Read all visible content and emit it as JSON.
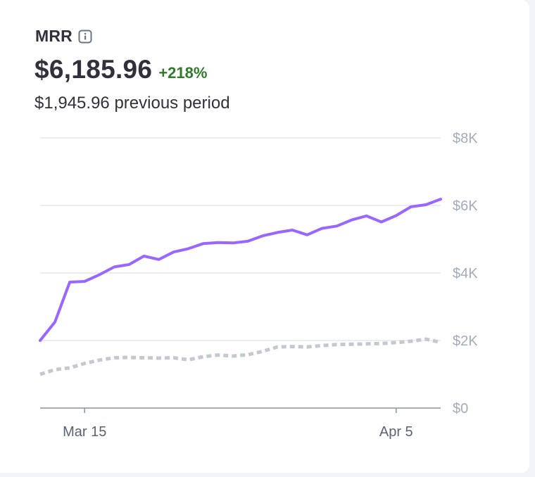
{
  "card": {
    "metric_name": "MRR",
    "value": "$6,185.96",
    "change": "+218%",
    "previous_value": "$1,945.96",
    "previous_suffix": "previous period",
    "info_icon": "info-icon"
  },
  "colors": {
    "current": "#9966ff",
    "previous": "#c4c8d0",
    "grid": "#e3e8ee",
    "axis": "#8792a2",
    "change_positive": "#2f7a2b"
  },
  "chart_data": {
    "type": "line",
    "title": "",
    "xlabel": "",
    "ylabel": "",
    "ylim": [
      0,
      8000
    ],
    "yticks": [
      {
        "value": 0,
        "label": "$0"
      },
      {
        "value": 2000,
        "label": "$2K"
      },
      {
        "value": 4000,
        "label": "$4K"
      },
      {
        "value": 6000,
        "label": "$6K"
      },
      {
        "value": 8000,
        "label": "$8K"
      }
    ],
    "x": [
      "2024-03-12",
      "2024-03-13",
      "2024-03-14",
      "2024-03-15",
      "2024-03-16",
      "2024-03-17",
      "2024-03-18",
      "2024-03-19",
      "2024-03-20",
      "2024-03-21",
      "2024-03-22",
      "2024-03-23",
      "2024-03-24",
      "2024-03-25",
      "2024-03-26",
      "2024-03-27",
      "2024-03-28",
      "2024-03-29",
      "2024-03-30",
      "2024-03-31",
      "2024-04-01",
      "2024-04-02",
      "2024-04-03",
      "2024-04-04",
      "2024-04-05",
      "2024-04-06",
      "2024-04-07",
      "2024-04-08"
    ],
    "xticks": [
      {
        "value": "2024-03-15",
        "label": "Mar 15"
      },
      {
        "value": "2024-04-05",
        "label": "Apr 5"
      }
    ],
    "grid": true,
    "series": [
      {
        "name": "",
        "style": "solid",
        "values": [
          2000,
          2550,
          3730,
          3750,
          3950,
          4180,
          4250,
          4500,
          4400,
          4620,
          4720,
          4870,
          4900,
          4890,
          4940,
          5100,
          5200,
          5270,
          5130,
          5320,
          5390,
          5570,
          5690,
          5510,
          5700,
          5960,
          6020,
          6185
        ]
      },
      {
        "name": "",
        "style": "dotted",
        "values": [
          1000,
          1140,
          1190,
          1320,
          1420,
          1490,
          1500,
          1490,
          1480,
          1490,
          1430,
          1520,
          1570,
          1540,
          1580,
          1680,
          1810,
          1820,
          1810,
          1850,
          1880,
          1890,
          1900,
          1910,
          1940,
          1980,
          2040,
          1945
        ]
      }
    ]
  }
}
